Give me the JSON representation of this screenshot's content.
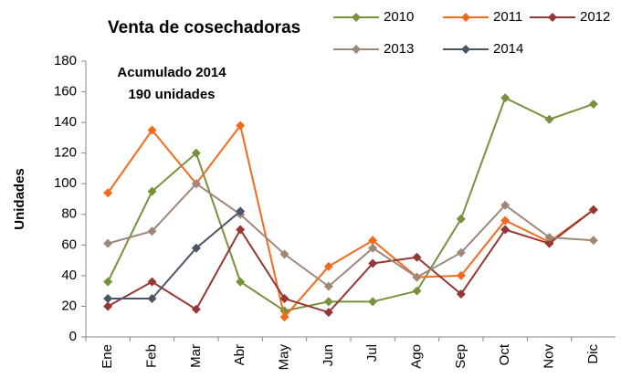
{
  "chart_data": {
    "type": "line",
    "title": "Venta de cosechadoras",
    "ylabel": "Unidades",
    "annotations": [
      "Acumulado 2014",
      "190 unidades"
    ],
    "categories": [
      "Ene",
      "Feb",
      "Mar",
      "Abr",
      "May",
      "Jun",
      "Jul",
      "Ago",
      "Sep",
      "Oct",
      "Nov",
      "Dic"
    ],
    "series": [
      {
        "name": "2010",
        "color": "#76923c",
        "values": [
          36,
          95,
          120,
          36,
          17,
          23,
          23,
          30,
          77,
          156,
          142,
          152
        ]
      },
      {
        "name": "2011",
        "color": "#f26b1d",
        "values": [
          94,
          135,
          100,
          138,
          13,
          46,
          63,
          39,
          40,
          76,
          62,
          83
        ]
      },
      {
        "name": "2012",
        "color": "#953735",
        "values": [
          20,
          36,
          18,
          70,
          25,
          16,
          48,
          52,
          28,
          70,
          61,
          83
        ]
      },
      {
        "name": "2013",
        "color": "#a08878",
        "values": [
          61,
          69,
          100,
          80,
          54,
          33,
          58,
          39,
          55,
          86,
          65,
          63
        ]
      },
      {
        "name": "2014",
        "color": "#4a5666",
        "values": [
          25,
          25,
          58,
          82,
          null,
          null,
          null,
          null,
          null,
          null,
          null,
          null
        ]
      }
    ],
    "ylim": [
      0,
      180
    ],
    "yticks": [
      0,
      20,
      40,
      60,
      80,
      100,
      120,
      140,
      160,
      180
    ],
    "grid": false
  }
}
